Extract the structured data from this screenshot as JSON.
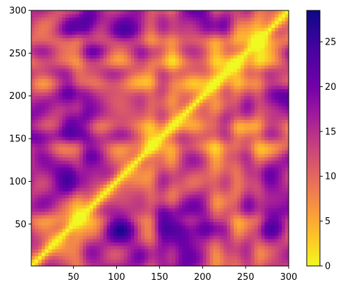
{
  "chart_data": {
    "type": "heatmap",
    "title": "",
    "xlabel": "",
    "ylabel": "",
    "xlim": [
      1,
      300
    ],
    "ylim": [
      1,
      300
    ],
    "x_ticks": [
      50,
      100,
      150,
      200,
      250,
      300
    ],
    "y_ticks": [
      50,
      100,
      150,
      200,
      250,
      300
    ],
    "colorbar": {
      "colormap": "plasma_r",
      "range": [
        0,
        28.5
      ],
      "ticks": [
        0,
        5,
        10,
        15,
        20,
        25
      ]
    },
    "description_of_values": {
      "diagonal_value": 0,
      "low_value_bands_x": [
        55,
        140,
        165,
        215,
        240,
        265
      ],
      "high_value_spots": [
        {
          "x": 55,
          "y": 160,
          "value": 27
        },
        {
          "x": 160,
          "y": 55,
          "value": 27
        },
        {
          "x": 105,
          "y": 50,
          "value": 25
        },
        {
          "x": 50,
          "y": 105,
          "value": 25
        },
        {
          "x": 200,
          "y": 50,
          "value": 24
        },
        {
          "x": 50,
          "y": 200,
          "value": 24
        },
        {
          "x": 60,
          "y": 285,
          "value": 24
        },
        {
          "x": 285,
          "y": 60,
          "value": 24
        },
        {
          "x": 110,
          "y": 280,
          "value": 22
        },
        {
          "x": 280,
          "y": 110,
          "value": 22
        },
        {
          "x": 290,
          "y": 200,
          "value": 22
        },
        {
          "x": 200,
          "y": 290,
          "value": 22
        },
        {
          "x": 10,
          "y": 160,
          "value": 23
        },
        {
          "x": 160,
          "y": 10,
          "value": 23
        }
      ]
    }
  }
}
